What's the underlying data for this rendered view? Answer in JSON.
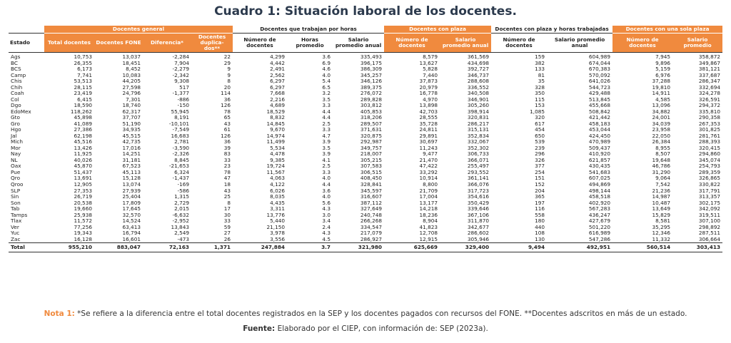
{
  "title": "Cuadro 1: Situación laboral de los docentes.",
  "groups": [
    {
      "label": "",
      "span": 1,
      "style": "plain"
    },
    {
      "label": "Docentes general",
      "span": 4,
      "style": "orange"
    },
    {
      "label": "Docentes que trabajan por horas",
      "span": 3,
      "style": "plain"
    },
    {
      "label": "Docentes con plaza",
      "span": 2,
      "style": "orange"
    },
    {
      "label": "Docentes con plaza y horas trabajadas",
      "span": 2,
      "style": "plain"
    },
    {
      "label": "Docentes con una sola plaza",
      "span": 2,
      "style": "orange"
    }
  ],
  "columns": [
    {
      "label": "Estado",
      "style": "plain"
    },
    {
      "label": "Total docentes",
      "style": "orange"
    },
    {
      "label": "Docentes FONE",
      "style": "orange"
    },
    {
      "label": "Diferencia*",
      "style": "orange"
    },
    {
      "label": "Docentes duplica-dos**",
      "style": "orange"
    },
    {
      "label": "Número de docentes",
      "style": "plain"
    },
    {
      "label": "Horas promedio",
      "style": "plain"
    },
    {
      "label": "Salario promedio anual",
      "style": "plain"
    },
    {
      "label": "Número de docentes",
      "style": "orange"
    },
    {
      "label": "Salario promedio anual",
      "style": "orange"
    },
    {
      "label": "Número de docentes",
      "style": "plain"
    },
    {
      "label": "Salario promedio anual",
      "style": "plain"
    },
    {
      "label": "Número de docentes",
      "style": "orange"
    },
    {
      "label": "Salario promedio",
      "style": "orange"
    }
  ],
  "rows": [
    [
      "Ags",
      "10,753",
      "13,037",
      "-2,284",
      "22",
      "4,299",
      "3.6",
      "335,493",
      "8,579",
      "361,569",
      "159",
      "604,989",
      "7,945",
      "358,872"
    ],
    [
      "BC",
      "26,355",
      "18,451",
      "7,904",
      "29",
      "4,442",
      "6.9",
      "396,175",
      "13,627",
      "434,698",
      "382",
      "674,044",
      "9,896",
      "349,867"
    ],
    [
      "BCS",
      "6,173",
      "8,452",
      "-2,279",
      "9",
      "2,491",
      "4.6",
      "386,309",
      "5,828",
      "392,727",
      "133",
      "670,383",
      "5,159",
      "381,121"
    ],
    [
      "Camp",
      "7,741",
      "10,083",
      "-2,342",
      "9",
      "2,562",
      "4.0",
      "345,257",
      "7,440",
      "346,737",
      "81",
      "570,092",
      "6,976",
      "337,687"
    ],
    [
      "Chis",
      "53,513",
      "44,205",
      "9,308",
      "8",
      "6,297",
      "5.4",
      "346,126",
      "37,873",
      "288,608",
      "35",
      "641,026",
      "37,288",
      "286,347"
    ],
    [
      "Chih",
      "28,115",
      "27,598",
      "517",
      "20",
      "6,297",
      "6.5",
      "389,375",
      "20,979",
      "336,552",
      "328",
      "544,723",
      "19,810",
      "332,694"
    ],
    [
      "Coah",
      "23,419",
      "24,796",
      "-1,377",
      "114",
      "7,668",
      "3.2",
      "276,072",
      "16,778",
      "340,508",
      "350",
      "429,488",
      "14,911",
      "324,278"
    ],
    [
      "Col",
      "6,415",
      "7,301",
      "-886",
      "36",
      "2,216",
      "3.5",
      "289,828",
      "4,970",
      "346,901",
      "115",
      "513,845",
      "4,585",
      "326,591"
    ],
    [
      "Dgo",
      "18,590",
      "18,740",
      "-150",
      "126",
      "4,689",
      "3.3",
      "303,812",
      "13,898",
      "305,260",
      "153",
      "455,668",
      "13,096",
      "294,372"
    ],
    [
      "EdoMex",
      "118,262",
      "62,317",
      "55,945",
      "78",
      "18,529",
      "4.4",
      "405,853",
      "42,703",
      "398,914",
      "1,085",
      "508,842",
      "34,882",
      "335,810"
    ],
    [
      "Gto",
      "45,898",
      "37,707",
      "8,191",
      "65",
      "8,832",
      "4.4",
      "318,206",
      "28,555",
      "320,831",
      "320",
      "421,442",
      "24,001",
      "290,358"
    ],
    [
      "Gro",
      "41,089",
      "51,190",
      "-10,101",
      "43",
      "14,845",
      "2.5",
      "289,507",
      "35,728",
      "286,217",
      "617",
      "458,183",
      "34,039",
      "267,353"
    ],
    [
      "Hgo",
      "27,386",
      "34,935",
      "-7,549",
      "61",
      "9,670",
      "3.3",
      "371,631",
      "24,811",
      "315,131",
      "454",
      "453,044",
      "23,958",
      "301,825"
    ],
    [
      "Jal",
      "62,198",
      "45,515",
      "16,683",
      "126",
      "14,974",
      "4.7",
      "320,875",
      "29,891",
      "352,834",
      "650",
      "424,450",
      "22,050",
      "281,761"
    ],
    [
      "Mich",
      "45,516",
      "42,735",
      "2,781",
      "36",
      "11,499",
      "3.9",
      "292,987",
      "30,697",
      "332,067",
      "539",
      "470,989",
      "26,384",
      "288,393"
    ],
    [
      "Mor",
      "13,426",
      "17,016",
      "-3,590",
      "39",
      "5,534",
      "3.5",
      "349,757",
      "11,243",
      "352,302",
      "239",
      "509,437",
      "8,955",
      "320,415"
    ],
    [
      "Nay",
      "11,925",
      "14,251",
      "-2,326",
      "83",
      "4,478",
      "3.9",
      "218,007",
      "9,477",
      "306,733",
      "296",
      "410,920",
      "8,507",
      "294,860"
    ],
    [
      "NL",
      "40,026",
      "31,181",
      "8,845",
      "33",
      "9,385",
      "4.1",
      "305,215",
      "21,470",
      "366,071",
      "326",
      "621,857",
      "19,648",
      "345,074"
    ],
    [
      "Oax",
      "45,870",
      "67,523",
      "-21,653",
      "23",
      "19,724",
      "2.5",
      "307,583",
      "47,422",
      "255,497",
      "377",
      "430,435",
      "46,786",
      "254,793"
    ],
    [
      "Pue",
      "51,437",
      "45,113",
      "6,324",
      "78",
      "11,567",
      "3.3",
      "306,515",
      "33,292",
      "293,552",
      "254",
      "541,683",
      "31,290",
      "289,359"
    ],
    [
      "Qro",
      "13,691",
      "15,128",
      "-1,437",
      "47",
      "4,063",
      "4.0",
      "408,450",
      "10,914",
      "361,141",
      "151",
      "607,025",
      "9,064",
      "326,865"
    ],
    [
      "Qroo",
      "12,905",
      "13,074",
      "-169",
      "18",
      "4,122",
      "4.4",
      "328,841",
      "8,800",
      "366,076",
      "152",
      "494,869",
      "7,542",
      "330,822"
    ],
    [
      "SLP",
      "27,353",
      "27,939",
      "-586",
      "43",
      "6,026",
      "3.6",
      "345,597",
      "21,709",
      "317,723",
      "204",
      "498,144",
      "21,236",
      "317,791"
    ],
    [
      "Sin",
      "26,719",
      "25,404",
      "1,315",
      "25",
      "8,035",
      "4.0",
      "316,607",
      "17,004",
      "354,616",
      "365",
      "458,518",
      "14,987",
      "313,357"
    ],
    [
      "Son",
      "20,538",
      "17,809",
      "2,729",
      "8",
      "4,435",
      "5.6",
      "387,112",
      "13,177",
      "350,429",
      "197",
      "402,920",
      "10,487",
      "302,175"
    ],
    [
      "Tab",
      "19,660",
      "17,645",
      "2,015",
      "17",
      "3,311",
      "4.3",
      "327,649",
      "14,218",
      "339,646",
      "116",
      "567,283",
      "13,649",
      "342,092"
    ],
    [
      "Tamps",
      "25,938",
      "32,570",
      "-6,632",
      "30",
      "13,776",
      "3.0",
      "240,748",
      "18,236",
      "367,106",
      "558",
      "436,247",
      "15,829",
      "319,511"
    ],
    [
      "Tlax",
      "11,572",
      "14,524",
      "-2,952",
      "33",
      "5,440",
      "3.4",
      "266,268",
      "8,904",
      "311,870",
      "180",
      "427,679",
      "8,581",
      "307,100"
    ],
    [
      "Ver",
      "77,256",
      "63,413",
      "13,843",
      "59",
      "21,150",
      "2.4",
      "334,547",
      "41,823",
      "342,677",
      "440",
      "501,220",
      "35,295",
      "298,892"
    ],
    [
      "Yuc",
      "19,343",
      "16,794",
      "2,549",
      "27",
      "3,978",
      "4.3",
      "217,079",
      "12,708",
      "286,602",
      "108",
      "616,989",
      "12,346",
      "287,511"
    ],
    [
      "Zac",
      "16,128",
      "16,601",
      "-473",
      "26",
      "3,556",
      "4.5",
      "286,927",
      "12,915",
      "305,946",
      "130",
      "547,286",
      "11,332",
      "306,664"
    ]
  ],
  "total": [
    "Total",
    "955,210",
    "883,047",
    "72,163",
    "1,371",
    "247,884",
    "3.7",
    "321,980",
    "625,669",
    "329,400",
    "9,494",
    "492,951",
    "560,514",
    "303,413"
  ],
  "note_label": "Nota 1:",
  "note_text": " *Se refiere a la diferencia entre el total docentes registrados en la SEP y los docentes pagados con recursos del FONE. **Docentes adscritos en más de un estado.",
  "source_label": "Fuente:",
  "source_text": "  Elaborado por el CIEP, con información de: SEP (2023a).",
  "colors": {
    "accent": "#f08a3e",
    "title": "#2c3a4d"
  }
}
